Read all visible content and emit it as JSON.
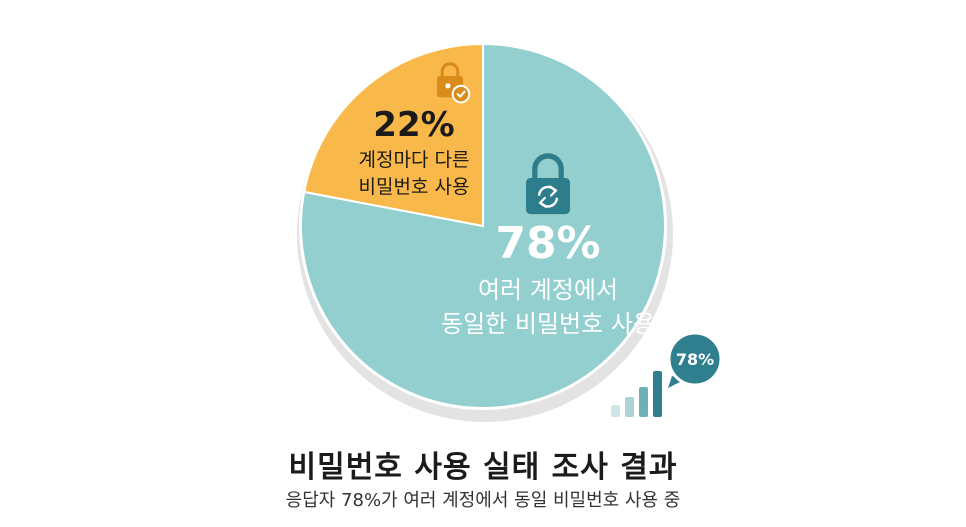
{
  "chart_data": {
    "type": "pie",
    "slices": [
      {
        "value": 78,
        "value_label": "78%",
        "label_lines": [
          "여러 계정에서",
          "동일한 비밀번호 사용"
        ],
        "color": "#93cfcf",
        "icon": "lock-refresh-icon"
      },
      {
        "value": 22,
        "value_label": "22%",
        "label_lines": [
          "계정마다 다른",
          "비밀번호 사용"
        ],
        "color": "#f9b94a",
        "icon": "lock-check-icon"
      }
    ],
    "badge": {
      "text": "78%",
      "icon": "bar-signal-icon",
      "color": "#2f7f8f"
    }
  },
  "title": "비밀번호 사용 실태 조사 결과",
  "subtitle": "응답자 78%가 여러 계정에서 동일 비밀번호 사용 중",
  "colors": {
    "teal_dark": "#2e7d8c",
    "orange_dark": "#d98c1a",
    "shadow": "#e3e3e3"
  }
}
